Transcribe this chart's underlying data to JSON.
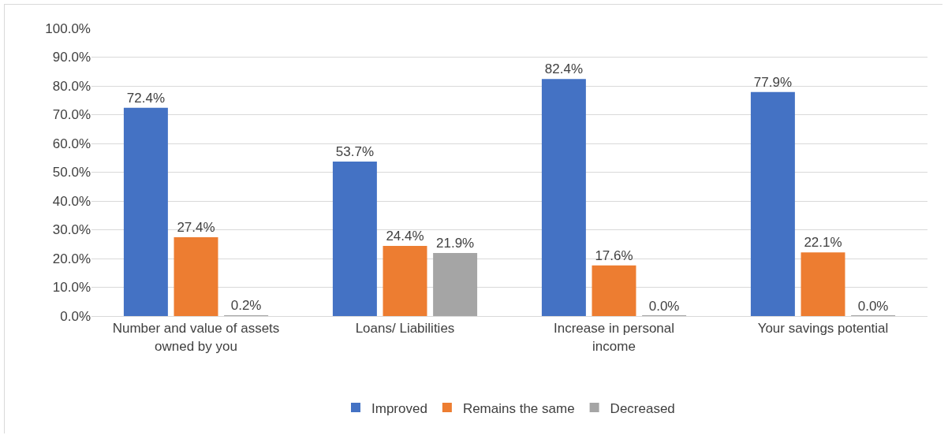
{
  "chart_data": {
    "type": "bar",
    "categories": [
      "Number and value of assets  owned by you",
      "Loans/ Liabilities",
      "Increase in personal income",
      "Your savings potential"
    ],
    "series": [
      {
        "name": "Improved",
        "color": "#4472c4",
        "values": [
          72.4,
          53.7,
          82.4,
          77.9
        ],
        "value_labels": [
          "72.4%",
          "53.7%",
          "82.4%",
          "77.9%"
        ]
      },
      {
        "name": "Remains the same",
        "color": "#ed7d31",
        "values": [
          27.4,
          24.4,
          17.6,
          22.1
        ],
        "value_labels": [
          "27.4%",
          "24.4%",
          "17.6%",
          "22.1%"
        ]
      },
      {
        "name": "Decreased",
        "color": "#a5a5a5",
        "values": [
          0.2,
          21.9,
          0.0,
          0.0
        ],
        "value_labels": [
          "0.2%",
          "21.9%",
          "0.0%",
          "0.0%"
        ]
      }
    ],
    "ylim": [
      0,
      100
    ],
    "yticks": [
      {
        "value": 0,
        "label": "0.0%"
      },
      {
        "value": 10,
        "label": "10.0%"
      },
      {
        "value": 20,
        "label": "20.0%"
      },
      {
        "value": 30,
        "label": "30.0%"
      },
      {
        "value": 40,
        "label": "40.0%"
      },
      {
        "value": 50,
        "label": "50.0%"
      },
      {
        "value": 60,
        "label": "60.0%"
      },
      {
        "value": 70,
        "label": "70.0%"
      },
      {
        "value": 80,
        "label": "80.0%"
      },
      {
        "value": 90,
        "label": "90.0%"
      },
      {
        "value": 100,
        "label": "100.0%"
      }
    ],
    "grid": "y",
    "legend": "bottom"
  }
}
